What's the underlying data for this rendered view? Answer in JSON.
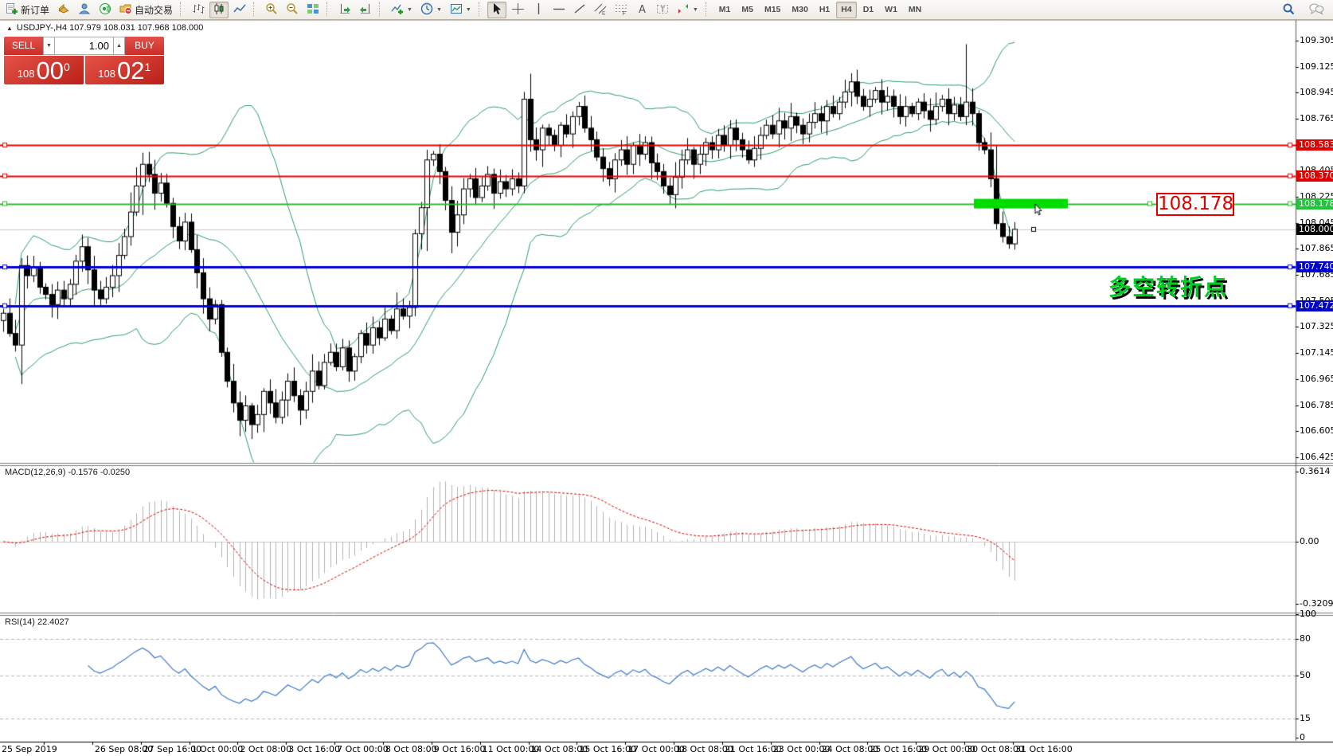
{
  "toolbar": {
    "groups": [
      {
        "name": "file",
        "items": [
          {
            "name": "new-order-button",
            "icon": "new-order",
            "label": "新订单"
          },
          {
            "name": "market-watch-button",
            "icon": "gold"
          },
          {
            "name": "community-button",
            "icon": "person"
          },
          {
            "name": "signals-button",
            "icon": "signal"
          },
          {
            "name": "autotrade-button",
            "icon": "autotrade",
            "label": "自动交易"
          }
        ]
      },
      {
        "name": "chart-type",
        "items": [
          {
            "name": "bar-chart-button",
            "icon": "bars"
          },
          {
            "name": "candle-chart-button",
            "icon": "candles",
            "active": true
          },
          {
            "name": "line-chart-button",
            "icon": "line"
          }
        ]
      },
      {
        "name": "zoom",
        "items": [
          {
            "name": "zoom-in-button",
            "icon": "zoom-in"
          },
          {
            "name": "zoom-out-button",
            "icon": "zoom-out"
          },
          {
            "name": "tile-windows-button",
            "icon": "tile"
          }
        ]
      },
      {
        "name": "scroll",
        "items": [
          {
            "name": "auto-scroll-button",
            "icon": "autoscroll"
          },
          {
            "name": "chart-shift-button",
            "icon": "shift"
          }
        ]
      },
      {
        "name": "insert",
        "items": [
          {
            "name": "indicators-button",
            "icon": "indicator",
            "caret": true
          },
          {
            "name": "periods-button",
            "icon": "clock",
            "caret": true
          },
          {
            "name": "templates-button",
            "icon": "template",
            "caret": true
          }
        ]
      },
      {
        "name": "draw",
        "items": [
          {
            "name": "cursor-button",
            "icon": "cursor",
            "active": true
          },
          {
            "name": "crosshair-button",
            "icon": "crosshair"
          },
          {
            "name": "vertical-line-button",
            "icon": "vline"
          },
          {
            "name": "horizontal-line-button",
            "icon": "hline"
          },
          {
            "name": "trendline-button",
            "icon": "trendline"
          },
          {
            "name": "channel-button",
            "icon": "channel"
          },
          {
            "name": "fibonacci-button",
            "icon": "fibo"
          },
          {
            "name": "text-button",
            "icon": "textA"
          },
          {
            "name": "text-label-button",
            "icon": "labelT"
          },
          {
            "name": "arrows-button",
            "icon": "arrows",
            "caret": true
          }
        ]
      },
      {
        "name": "timeframes",
        "items": [
          {
            "name": "tf-m1-button",
            "label": "M1"
          },
          {
            "name": "tf-m5-button",
            "label": "M5"
          },
          {
            "name": "tf-m15-button",
            "label": "M15"
          },
          {
            "name": "tf-m30-button",
            "label": "M30"
          },
          {
            "name": "tf-h1-button",
            "label": "H1"
          },
          {
            "name": "tf-h4-button",
            "label": "H4",
            "active": true
          },
          {
            "name": "tf-d1-button",
            "label": "D1"
          },
          {
            "name": "tf-w1-button",
            "label": "W1"
          },
          {
            "name": "tf-mn-button",
            "label": "MN"
          }
        ]
      }
    ],
    "right_items": [
      {
        "name": "search-button",
        "icon": "magnifier"
      },
      {
        "name": "chat-button",
        "icon": "chat"
      }
    ]
  },
  "chart": {
    "collapse_icon": "▲",
    "symbol_header": "USDJPY-,H4  107.979 108.031 107.968 108.000"
  },
  "trade_panel": {
    "sell_label": "SELL",
    "buy_label": "BUY",
    "volume": "1.00",
    "spin_down": "▼",
    "spin_up": "▲",
    "bid": {
      "prefix": "108",
      "big": "00",
      "sup": "0"
    },
    "ask": {
      "prefix": "108",
      "big": "02",
      "sup": "1"
    }
  },
  "panels": {
    "macd_header": "MACD(12,26,9) -0.1576 -0.0250",
    "rsi_header": "RSI(14) 22.4027"
  },
  "annotations": {
    "price_label": "108.178",
    "turning_point": "多空转折点",
    "callout_color": "#dd0000",
    "turning_point_color": "#00cc22"
  },
  "price_axis_special": [
    {
      "label": "108.583",
      "price": 108.583,
      "bg": "#e00000",
      "fg": "#ffffff"
    },
    {
      "label": "108.370",
      "price": 108.37,
      "bg": "#e00000",
      "fg": "#ffffff"
    },
    {
      "label": "108.178",
      "price": 108.178,
      "bg": "#24c33e",
      "fg": "#ffffff"
    },
    {
      "label": "108.000",
      "price": 108.0,
      "bg": "#000000",
      "fg": "#ffffff"
    },
    {
      "label": "107.740",
      "price": 107.74,
      "bg": "#0000cc",
      "fg": "#ffffff"
    },
    {
      "label": "107.472",
      "price": 107.472,
      "bg": "#0000cc",
      "fg": "#ffffff"
    }
  ],
  "chart_data": {
    "type": "candlestick",
    "symbol": "USDJPY-",
    "timeframe": "H4",
    "ohlc_header": {
      "open": "107.979",
      "high": "108.031",
      "low": "107.968",
      "close": "108.000"
    },
    "y_range": [
      106.34,
      109.36
    ],
    "y_axis_ticks": [
      {
        "label": "109.305",
        "price": 109.305
      },
      {
        "label": "109.125",
        "price": 109.125
      },
      {
        "label": "108.945",
        "price": 108.945
      },
      {
        "label": "108.765",
        "price": 108.765
      },
      {
        "label": "108.585",
        "price": 108.585
      },
      {
        "label": "108.405",
        "price": 108.405
      },
      {
        "label": "108.225",
        "price": 108.225
      },
      {
        "label": "108.045",
        "price": 108.045
      },
      {
        "label": "107.865",
        "price": 107.865
      },
      {
        "label": "107.685",
        "price": 107.685
      },
      {
        "label": "107.505",
        "price": 107.505
      },
      {
        "label": "107.325",
        "price": 107.325
      },
      {
        "label": "107.145",
        "price": 107.145
      },
      {
        "label": "106.965",
        "price": 106.965
      },
      {
        "label": "106.785",
        "price": 106.785
      },
      {
        "label": "106.605",
        "price": 106.605
      },
      {
        "label": "106.425",
        "price": 106.425
      }
    ],
    "x_categories": [
      "25 Sep 2019",
      "26 Sep 08:00",
      "27 Sep 16:00",
      "1 Oct 00:00",
      "2 Oct 08:00",
      "3 Oct 16:00",
      "7 Oct 00:00",
      "8 Oct 08:00",
      "9 Oct 16:00",
      "11 Oct 00:00",
      "14 Oct 08:00",
      "15 Oct 16:00",
      "17 Oct 00:00",
      "18 Oct 08:00",
      "21 Oct 16:00",
      "23 Oct 00:00",
      "24 Oct 08:00",
      "25 Oct 16:00",
      "29 Oct 00:00",
      "30 Oct 08:00",
      "31 Oct 16:00"
    ],
    "closes": [
      107.42,
      107.28,
      107.2,
      107.75,
      107.68,
      107.74,
      107.6,
      107.55,
      107.48,
      107.58,
      107.52,
      107.62,
      107.78,
      107.88,
      107.72,
      107.58,
      107.52,
      107.6,
      107.68,
      107.82,
      107.95,
      108.12,
      108.3,
      108.45,
      108.38,
      108.25,
      108.32,
      108.18,
      108.02,
      107.92,
      108.05,
      107.86,
      107.7,
      107.52,
      107.38,
      107.48,
      107.15,
      106.95,
      106.8,
      106.68,
      106.78,
      106.65,
      106.72,
      106.88,
      106.8,
      106.7,
      106.82,
      106.95,
      106.85,
      106.75,
      106.88,
      107.02,
      106.92,
      107.08,
      107.15,
      107.05,
      107.18,
      107.02,
      107.12,
      107.28,
      107.2,
      107.32,
      107.25,
      107.38,
      107.3,
      107.45,
      107.4,
      107.46,
      107.97,
      108.15,
      108.48,
      108.52,
      108.4,
      108.2,
      107.98,
      108.1,
      108.28,
      108.35,
      108.22,
      108.3,
      108.38,
      108.25,
      108.33,
      108.28,
      108.35,
      108.3,
      108.9,
      108.62,
      108.55,
      108.7,
      108.65,
      108.58,
      108.72,
      108.66,
      108.78,
      108.85,
      108.7,
      108.62,
      108.5,
      108.42,
      108.35,
      108.48,
      108.55,
      108.45,
      108.58,
      108.52,
      108.6,
      108.46,
      108.4,
      108.3,
      108.24,
      108.36,
      108.48,
      108.55,
      108.45,
      108.52,
      108.6,
      108.55,
      108.65,
      108.58,
      108.7,
      108.62,
      108.55,
      108.48,
      108.56,
      108.65,
      108.72,
      108.66,
      108.75,
      108.7,
      108.78,
      108.72,
      108.66,
      108.74,
      108.8,
      108.75,
      108.85,
      108.8,
      108.88,
      108.95,
      109.02,
      108.92,
      108.85,
      108.9,
      108.96,
      108.88,
      108.92,
      108.85,
      108.78,
      108.85,
      108.8,
      108.88,
      108.82,
      108.76,
      108.85,
      108.9,
      108.8,
      108.86,
      108.78,
      108.88,
      108.8,
      108.6,
      108.55,
      108.35,
      108.04,
      107.95,
      107.9,
      108.0
    ],
    "wick_overrides": {
      "3": [
        107.8,
        106.93
      ],
      "23": [
        108.53,
        108.1
      ],
      "39": [
        106.88,
        106.57
      ],
      "41": [
        106.8,
        106.55
      ],
      "68": [
        108.0,
        107.4
      ],
      "70": [
        108.55,
        107.85
      ],
      "86": [
        108.95,
        108.25
      ],
      "140": [
        109.08,
        108.85
      ],
      "159": [
        109.28,
        108.72
      ],
      "164": [
        108.58,
        108.0
      ],
      "167": [
        108.05,
        107.86
      ]
    },
    "indicators": {
      "bollinger": {
        "period": 20,
        "deviation": 2,
        "color": "#2e9e68"
      },
      "macd": {
        "fast": 12,
        "slow": 26,
        "signal": 9,
        "current": "-0.1576 -0.0250",
        "histogram_color": "#b4b4b4",
        "signal_color": "#e00000"
      },
      "rsi": {
        "period": 14,
        "current": 22.4027,
        "levels": [
          80,
          50,
          15
        ],
        "color": "#3c78c8"
      }
    },
    "price_levels": [
      {
        "price": 108.583,
        "color": "#ee0000",
        "width": 2
      },
      {
        "price": 108.37,
        "color": "#ee0000",
        "width": 2
      },
      {
        "price": 108.178,
        "color": "#2db92d",
        "width": 2
      },
      {
        "price": 108.0,
        "color": "#c8c8c8",
        "width": 1
      },
      {
        "price": 107.74,
        "color": "#0000e0",
        "width": 3
      },
      {
        "price": 107.472,
        "color": "#0000e0",
        "width": 3
      }
    ],
    "highlight_zone": {
      "price": 108.178,
      "color": "#00dc00"
    },
    "macd_axis": [
      {
        "label": "0.3614",
        "value": 0.3614
      },
      {
        "label": "0.00",
        "value": 0
      },
      {
        "label": "-0.3209",
        "value": -0.3209
      }
    ],
    "rsi_axis": [
      {
        "label": "100",
        "value": 100
      },
      {
        "label": "80",
        "value": 80
      },
      {
        "label": "50",
        "value": 50
      },
      {
        "label": "15",
        "value": 15
      },
      {
        "label": "0",
        "value": 0
      }
    ]
  }
}
